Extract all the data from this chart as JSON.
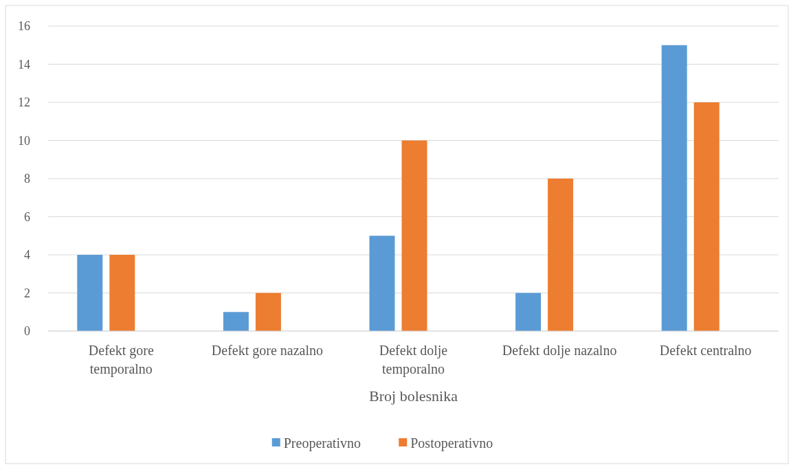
{
  "chart_data": {
    "type": "bar",
    "xlabel": "Broj bolesnika",
    "categories": [
      "Defekt gore temporalno",
      "Defekt gore nazalno",
      "Defekt dolje temporalno",
      "Defekt dolje nazalno",
      "Defekt centralno"
    ],
    "series": [
      {
        "name": "Preoperativno",
        "color": "#5b9bd5",
        "values": [
          4,
          1,
          5,
          2,
          15
        ]
      },
      {
        "name": "Postoperativno",
        "color": "#ed7d31",
        "values": [
          4,
          2,
          10,
          8,
          12
        ]
      }
    ],
    "ylim": [
      0,
      16
    ],
    "yticks": [
      0,
      2,
      4,
      6,
      8,
      10,
      12,
      14,
      16
    ],
    "grid": "y",
    "legend": "bottom"
  }
}
